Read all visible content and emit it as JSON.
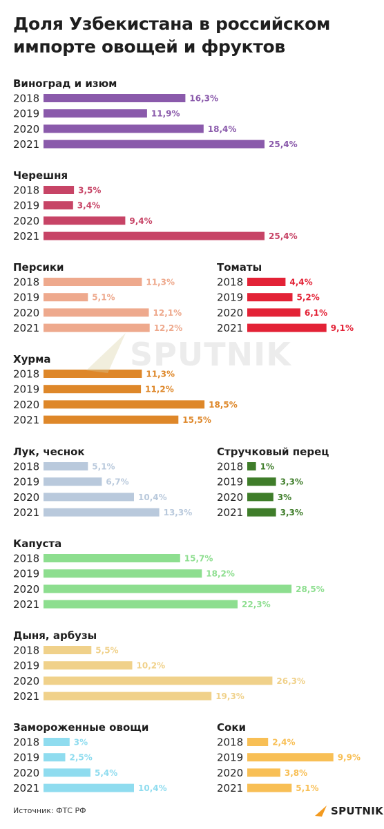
{
  "title": "Доля Узбекистана в российском импорте овощей и фруктов",
  "source": "Источник: ФТС РФ",
  "brand": "SPUTNIK",
  "watermark": "SPUTNIK",
  "chart_data": [
    {
      "type": "bar",
      "title": "Виноград и изюм",
      "color": "#8a5aab",
      "categories": [
        "2018",
        "2019",
        "2020",
        "2021"
      ],
      "values": [
        16.3,
        11.9,
        18.4,
        25.4
      ],
      "labels": [
        "16,3%",
        "11,9%",
        "18,4%",
        "25,4%"
      ]
    },
    {
      "type": "bar",
      "title": "Черешня",
      "color": "#c74466",
      "categories": [
        "2018",
        "2019",
        "2020",
        "2021"
      ],
      "values": [
        3.5,
        3.4,
        9.4,
        25.4
      ],
      "labels": [
        "3,5%",
        "3,4%",
        "9,4%",
        "25,4%"
      ]
    },
    {
      "type": "bar",
      "title": "Персики",
      "color": "#eea98d",
      "categories": [
        "2018",
        "2019",
        "2020",
        "2021"
      ],
      "values": [
        11.3,
        5.1,
        12.1,
        12.2
      ],
      "labels": [
        "11,3%",
        "5,1%",
        "12,1%",
        "12,2%"
      ]
    },
    {
      "type": "bar",
      "title": "Томаты",
      "color": "#e32236",
      "categories": [
        "2018",
        "2019",
        "2020",
        "2021"
      ],
      "values": [
        4.4,
        5.2,
        6.1,
        9.1
      ],
      "labels": [
        "4,4%",
        "5,2%",
        "6,1%",
        "9,1%"
      ]
    },
    {
      "type": "bar",
      "title": "Хурма",
      "color": "#de8729",
      "categories": [
        "2018",
        "2019",
        "2020",
        "2021"
      ],
      "values": [
        11.3,
        11.2,
        18.5,
        15.5
      ],
      "labels": [
        "11,3%",
        "11,2%",
        "18,5%",
        "15,5%"
      ]
    },
    {
      "type": "bar",
      "title": "Лук, чеснок",
      "color": "#b9c9dc",
      "categories": [
        "2018",
        "2019",
        "2020",
        "2021"
      ],
      "values": [
        5.1,
        6.7,
        10.4,
        13.3
      ],
      "labels": [
        "5,1%",
        "6,7%",
        "10,4%",
        "13,3%"
      ]
    },
    {
      "type": "bar",
      "title": "Стручковый перец",
      "color": "#3f7d2a",
      "categories": [
        "2018",
        "2019",
        "2020",
        "2021"
      ],
      "values": [
        1,
        3.3,
        3,
        3.3
      ],
      "labels": [
        "1%",
        "3,3%",
        "3%",
        "3,3%"
      ]
    },
    {
      "type": "bar",
      "title": "Капуста",
      "color": "#8dde8f",
      "categories": [
        "2018",
        "2019",
        "2020",
        "2021"
      ],
      "values": [
        15.7,
        18.2,
        28.5,
        22.3
      ],
      "labels": [
        "15,7%",
        "18,2%",
        "28,5%",
        "22,3%"
      ]
    },
    {
      "type": "bar",
      "title": "Дыня, арбузы",
      "color": "#f0d18a",
      "categories": [
        "2018",
        "2019",
        "2020",
        "2021"
      ],
      "values": [
        5.5,
        10.2,
        26.3,
        19.3
      ],
      "labels": [
        "5,5%",
        "10,2%",
        "26,3%",
        "19,3%"
      ]
    },
    {
      "type": "bar",
      "title": "Замороженные овощи",
      "color": "#8fdcef",
      "categories": [
        "2018",
        "2019",
        "2020",
        "2021"
      ],
      "values": [
        3,
        2.5,
        5.4,
        10.4
      ],
      "labels": [
        "3%",
        "2,5%",
        "5,4%",
        "10,4%"
      ]
    },
    {
      "type": "bar",
      "title": "Соки",
      "color": "#f8bf55",
      "categories": [
        "2018",
        "2019",
        "2020",
        "2021"
      ],
      "values": [
        2.4,
        9.9,
        3.8,
        5.1
      ],
      "labels": [
        "2,4%",
        "9,9%",
        "3,8%",
        "5,1%"
      ]
    }
  ]
}
